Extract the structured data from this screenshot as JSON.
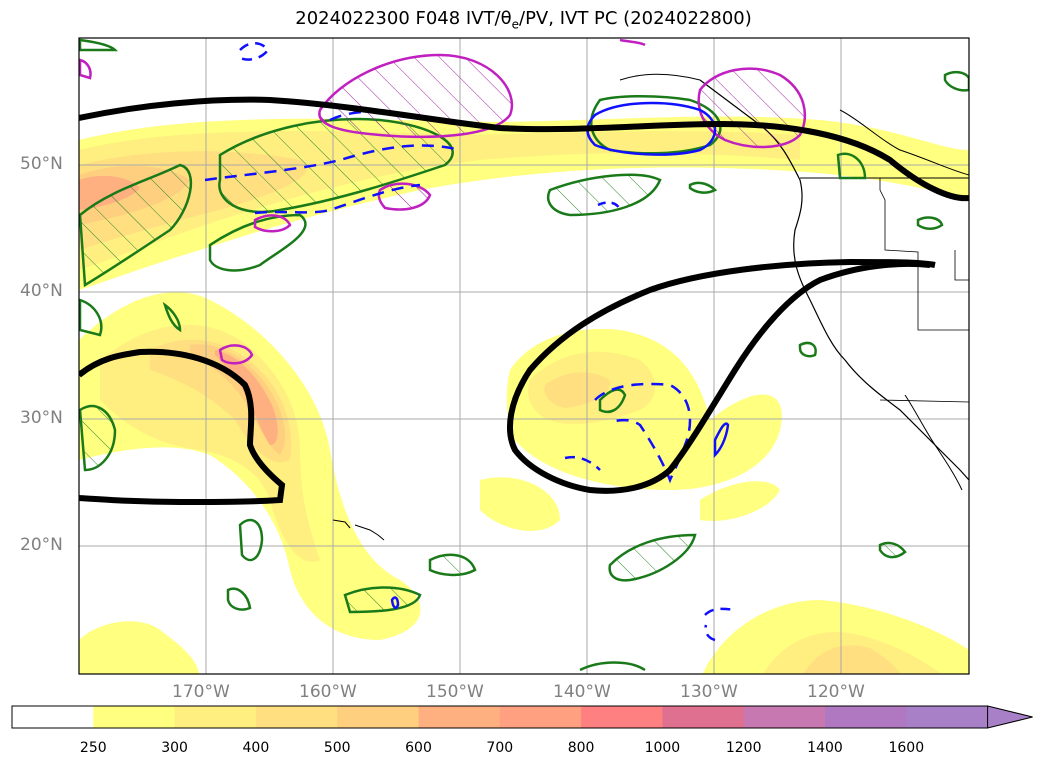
{
  "title": "2024022300 F048 IVT/θe/PV, IVT PC (2024022800)",
  "title_parts": {
    "prefix": "2024022300 F048 IVT/",
    "theta": "θ",
    "sub": "e",
    "suffix": "/PV, IVT PC (2024022800)"
  },
  "map": {
    "lat_labels": [
      "50°N",
      "40°N",
      "30°N",
      "20°N"
    ],
    "lon_labels": [
      "170°W",
      "160°W",
      "150°W",
      "140°W",
      "130°W",
      "120°W"
    ]
  },
  "colorbar": {
    "ticks": [
      "250",
      "300",
      "400",
      "500",
      "600",
      "700",
      "800",
      "1000",
      "1200",
      "1400",
      "1600"
    ],
    "colors": [
      "#ffffff",
      "#ffff80",
      "#ffef80",
      "#ffdf80",
      "#ffcf80",
      "#ffb080",
      "#ffa080",
      "#ff8080",
      "#e07090",
      "#c878b0",
      "#b078c0",
      "#a880c8"
    ]
  }
}
